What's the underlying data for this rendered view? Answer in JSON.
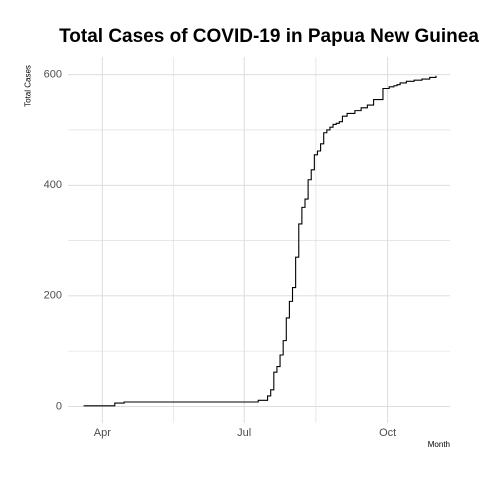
{
  "chart_data": {
    "type": "line",
    "title": "Total Cases of COVID-19 in Papua New Guinea",
    "xlabel": "Month",
    "ylabel": "Total Cases",
    "x_ticks": [
      "Apr",
      "Jul",
      "Oct"
    ],
    "y_ticks": [
      0,
      200,
      400,
      600
    ],
    "xlim": [
      "2020-03-10",
      "2020-11-10"
    ],
    "ylim": [
      -30,
      632
    ],
    "grid": true,
    "line_color": "#000000",
    "grid_color": "#d9d9d9",
    "series": [
      {
        "x": [
          "2020-03-20",
          "2020-04-08",
          "2020-04-09",
          "2020-04-15",
          "2020-07-05",
          "2020-07-10",
          "2020-07-13",
          "2020-07-16",
          "2020-07-18",
          "2020-07-20",
          "2020-07-22",
          "2020-07-24",
          "2020-07-26",
          "2020-07-28",
          "2020-07-30",
          "2020-08-01",
          "2020-08-03",
          "2020-08-05",
          "2020-08-07",
          "2020-08-09",
          "2020-08-11",
          "2020-08-13",
          "2020-08-15",
          "2020-08-17",
          "2020-08-19",
          "2020-08-21",
          "2020-08-23",
          "2020-08-25",
          "2020-08-27",
          "2020-08-29",
          "2020-08-31",
          "2020-09-02",
          "2020-09-05",
          "2020-09-10",
          "2020-09-14",
          "2020-09-18",
          "2020-09-22",
          "2020-09-28",
          "2020-10-02",
          "2020-10-05",
          "2020-10-07",
          "2020-10-09",
          "2020-10-13",
          "2020-10-18",
          "2020-10-23",
          "2020-10-28",
          "2020-11-01"
        ],
        "y": [
          1,
          1,
          6,
          8,
          8,
          11,
          11,
          19,
          30,
          62,
          72,
          93,
          119,
          160,
          190,
          215,
          270,
          330,
          360,
          375,
          410,
          428,
          455,
          462,
          475,
          495,
          500,
          505,
          510,
          512,
          515,
          525,
          530,
          535,
          540,
          545,
          555,
          575,
          578,
          580,
          582,
          585,
          588,
          590,
          592,
          595,
          598
        ]
      }
    ]
  }
}
